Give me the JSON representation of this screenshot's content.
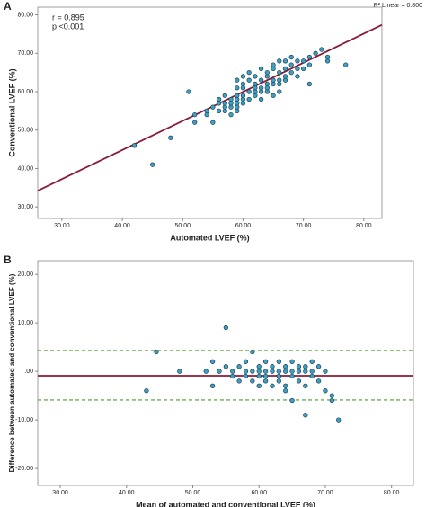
{
  "chart_data": [
    {
      "type": "scatter",
      "panel": "A",
      "x_label": "Automated LVEF (%)",
      "y_label": "Conventional LVEF (%)",
      "annotations": [
        "r = 0.895",
        "p <0.001"
      ],
      "fit_label": "R² Linear = 0.800",
      "xlim": [
        26,
        83
      ],
      "ylim": [
        27,
        82
      ],
      "xticks": [
        {
          "value": 30,
          "label": "30.00"
        },
        {
          "value": 40,
          "label": "40.00"
        },
        {
          "value": 50,
          "label": "50.00"
        },
        {
          "value": 60,
          "label": "60.00"
        },
        {
          "value": 70,
          "label": "70.00"
        },
        {
          "value": 80,
          "label": "80.00"
        }
      ],
      "yticks": [
        {
          "value": 30,
          "label": "30.00"
        },
        {
          "value": 40,
          "label": "40.00"
        },
        {
          "value": 50,
          "label": "50.00"
        },
        {
          "value": 60,
          "label": "60.00"
        },
        {
          "value": 70,
          "label": "70.00"
        },
        {
          "value": 80,
          "label": "80.00"
        }
      ],
      "color": "#3d9fc4",
      "fit_line": {
        "x": [
          26,
          83
        ],
        "y": [
          34.2,
          77.4
        ],
        "color": "#8b1a3a"
      },
      "x": [
        42,
        45,
        48,
        51,
        52,
        52,
        54,
        54,
        55,
        55,
        56,
        56,
        56,
        57,
        57,
        57,
        57,
        58,
        58,
        58,
        58,
        59,
        59,
        59,
        59,
        59,
        59,
        59,
        60,
        60,
        60,
        60,
        60,
        60,
        61,
        61,
        61,
        61,
        62,
        62,
        62,
        62,
        62,
        63,
        63,
        63,
        63,
        63,
        64,
        64,
        64,
        64,
        64,
        65,
        65,
        65,
        65,
        65,
        66,
        66,
        66,
        66,
        66,
        67,
        67,
        67,
        67,
        68,
        68,
        68,
        69,
        69,
        69,
        70,
        70,
        71,
        71,
        71,
        72,
        73,
        74,
        74,
        77
      ],
      "y": [
        46,
        41,
        48,
        60,
        54,
        52,
        54,
        55,
        56,
        52,
        55,
        57,
        58,
        55,
        56,
        57,
        59,
        54,
        56,
        57,
        58,
        55,
        56,
        57,
        58,
        59,
        61,
        63,
        57,
        58,
        59,
        61,
        62,
        64,
        58,
        60,
        63,
        65,
        59,
        60,
        61,
        62,
        64,
        58,
        60,
        61,
        63,
        66,
        60,
        61,
        62,
        64,
        65,
        59,
        62,
        63,
        66,
        67,
        60,
        62,
        63,
        65,
        68,
        63,
        64,
        66,
        68,
        65,
        67,
        69,
        64,
        66,
        68,
        66,
        68,
        62,
        67,
        69,
        70,
        71,
        68,
        69,
        67
      ]
    },
    {
      "type": "scatter",
      "panel": "B",
      "x_label": "Mean of automated and conventional LVEF (%)",
      "y_label": "Difference between automated and conventional LVEF (%)",
      "xlim": [
        26.6,
        83.3
      ],
      "ylim": [
        -23.5,
        22.8
      ],
      "xticks": [
        {
          "value": 30,
          "label": "30.00"
        },
        {
          "value": 40,
          "label": "40.00"
        },
        {
          "value": 50,
          "label": "50.00"
        },
        {
          "value": 60,
          "label": "60.00"
        },
        {
          "value": 70,
          "label": "70.00"
        },
        {
          "value": 80,
          "label": "80.00"
        }
      ],
      "yticks": [
        {
          "value": -20,
          "label": "-20.00"
        },
        {
          "value": -10,
          "label": "-10.00"
        },
        {
          "value": 0,
          "label": ".00"
        },
        {
          "value": 10,
          "label": "10.00"
        },
        {
          "value": 20,
          "label": "20.00"
        }
      ],
      "color": "#3d9fc4",
      "reference_lines": [
        {
          "value": -0.9,
          "color": "#8b1a3a",
          "dashed": false
        },
        {
          "value": 4.3,
          "color": "#6ab04c",
          "dashed": true
        },
        {
          "value": -5.9,
          "color": "#6ab04c",
          "dashed": true
        }
      ],
      "x": [
        43,
        44.5,
        48,
        52,
        53,
        53,
        54,
        55,
        55,
        56,
        56,
        57,
        57,
        58,
        58,
        58,
        59,
        59,
        59,
        60,
        60,
        60,
        60,
        61,
        61,
        61,
        61,
        62,
        62,
        62,
        63,
        63,
        63,
        63,
        64,
        64,
        64,
        64,
        65,
        65,
        65,
        65,
        66,
        66,
        66,
        67,
        67,
        67,
        67,
        68,
        68,
        68,
        69,
        69,
        70,
        70,
        71,
        71,
        72
      ],
      "y": [
        -4,
        4,
        0,
        0,
        2,
        -3,
        0,
        1,
        9,
        -1,
        0,
        1,
        -2,
        0,
        -1,
        2,
        0,
        -2,
        4,
        1,
        -1,
        0,
        -3,
        2,
        0,
        -1,
        -2,
        1,
        0,
        -3,
        0,
        2,
        -1,
        -2,
        1,
        0,
        -3,
        -4,
        0,
        2,
        -1,
        -6,
        1,
        -2,
        0,
        0,
        -9,
        -3,
        1,
        0,
        -1,
        2,
        1,
        -2,
        0,
        -4,
        -5,
        -6,
        -10
      ]
    }
  ]
}
